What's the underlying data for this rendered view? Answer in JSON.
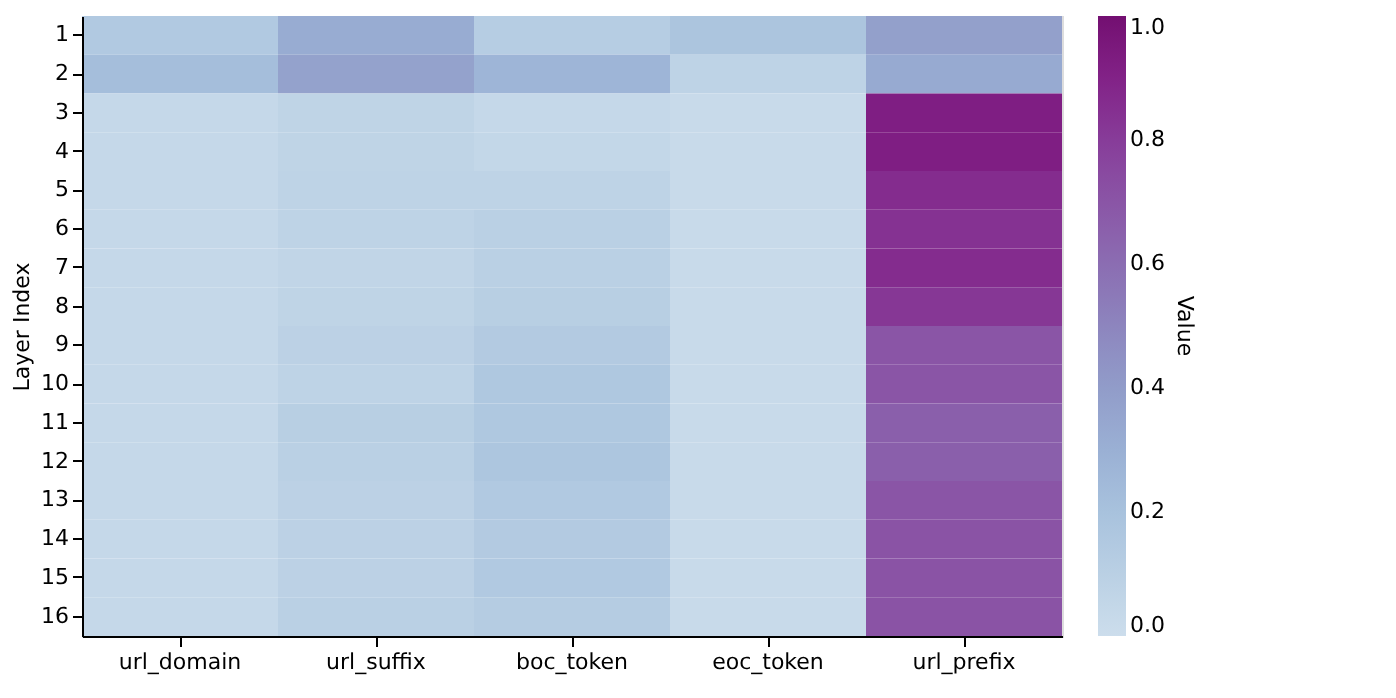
{
  "chart_data": {
    "type": "heatmap",
    "ylabel": "Layer Index",
    "clabel": "Value",
    "categories": [
      "url_domain",
      "url_suffix",
      "boc_token",
      "eoc_token",
      "url_prefix"
    ],
    "y_categories": [
      "1",
      "2",
      "3",
      "4",
      "5",
      "6",
      "7",
      "8",
      "9",
      "10",
      "11",
      "12",
      "13",
      "14",
      "15",
      "16"
    ],
    "cells": [
      [
        0.15,
        0.32,
        0.12,
        0.18,
        0.38
      ],
      [
        0.22,
        0.37,
        0.27,
        0.08,
        0.33
      ],
      [
        0.04,
        0.07,
        0.04,
        0.02,
        0.92
      ],
      [
        0.04,
        0.07,
        0.05,
        0.02,
        0.92
      ],
      [
        0.04,
        0.08,
        0.08,
        0.02,
        0.86
      ],
      [
        0.04,
        0.08,
        0.1,
        0.02,
        0.84
      ],
      [
        0.04,
        0.06,
        0.1,
        0.02,
        0.86
      ],
      [
        0.04,
        0.07,
        0.11,
        0.02,
        0.82
      ],
      [
        0.04,
        0.09,
        0.14,
        0.02,
        0.7
      ],
      [
        0.04,
        0.08,
        0.16,
        0.02,
        0.7
      ],
      [
        0.04,
        0.11,
        0.16,
        0.02,
        0.66
      ],
      [
        0.04,
        0.1,
        0.17,
        0.02,
        0.66
      ],
      [
        0.04,
        0.09,
        0.15,
        0.02,
        0.7
      ],
      [
        0.04,
        0.09,
        0.14,
        0.02,
        0.71
      ],
      [
        0.04,
        0.09,
        0.15,
        0.02,
        0.71
      ],
      [
        0.04,
        0.1,
        0.13,
        0.02,
        0.71
      ]
    ],
    "clim": [
      0,
      1
    ],
    "cticks": [
      {
        "value": 0,
        "label": "0.0"
      },
      0.2,
      0.4,
      0.6,
      0.8,
      {
        "value": 1,
        "label": "1.0"
      }
    ]
  }
}
